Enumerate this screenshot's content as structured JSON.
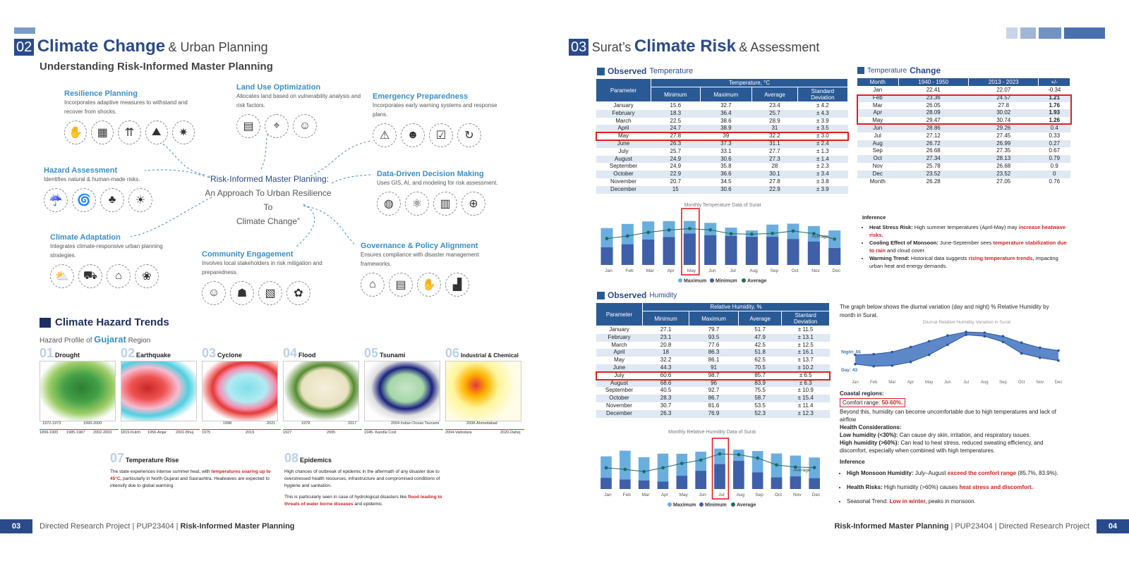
{
  "left": {
    "section_num": "02",
    "title_bold": "Climate Change",
    "title_rest": "& Urban Planning",
    "subtitle": "Understanding Risk-Informed Master Planning",
    "center_text": [
      "“Risk-Informed Master Planning:",
      "An Approach To Urban Resilience To",
      "Climate Change”"
    ],
    "nodes": [
      {
        "title": "Resilience Planning",
        "desc": "Incorporates adaptive measures to withstand and recover from shocks."
      },
      {
        "title": "Land Use Optimization",
        "desc": "Allocates land based on vulnerability analysis and risk factors."
      },
      {
        "title": "Emergency Preparedness",
        "desc": "Incorporates early warning systems and response plans."
      },
      {
        "title": "Hazard Assessment",
        "desc": "Identifies natural & human-made risks."
      },
      {
        "title": "Data-Driven Decision Making",
        "desc": "Uses GIS, AI, and modeling for risk assessment."
      },
      {
        "title": "Climate Adaptation",
        "desc": "Integrates climate-responsive urban planning strategies."
      },
      {
        "title": "Community Engagement",
        "desc": "Involves local stakeholders in risk mitigation and preparedness."
      },
      {
        "title": "Governance & Policy Alignment",
        "desc": "Ensures compliance with disaster management frameworks."
      }
    ],
    "hazard_title": "Climate Hazard Trends",
    "hazard_sub_pre": "Hazard Profile of",
    "hazard_sub_state": "Gujarat",
    "hazard_sub_post": "Region",
    "hazards": [
      {
        "num": "01",
        "name": "Drought",
        "labels_top": [
          "1972-1973",
          "1999-2000"
        ],
        "labels_bot": [
          "1899-1900",
          "1985-1987",
          "2002-2003"
        ]
      },
      {
        "num": "02",
        "name": "Earthquake",
        "labels_top": [],
        "labels_bot": [
          "1819-Kutch",
          "1956-Anjar",
          "2001-Bhuj"
        ]
      },
      {
        "num": "03",
        "name": "Cyclone",
        "labels_top": [
          "1998",
          "2021"
        ],
        "labels_bot": [
          "1975",
          "2019"
        ]
      },
      {
        "num": "04",
        "name": "Flood",
        "labels_top": [
          "1979",
          "2017"
        ],
        "labels_bot": [
          "1927",
          "2005"
        ]
      },
      {
        "num": "05",
        "name": "Tsunami",
        "labels_top": [
          "2004 Indian Ocean Tsunami"
        ],
        "labels_bot": [
          "1945- Kandla Cost"
        ]
      },
      {
        "num": "06",
        "name": "Industrial & Chemical",
        "labels_top": [
          "2008-Ahmedabad"
        ],
        "labels_bot": [
          "2004-Vadodara",
          "2020-Dahej"
        ]
      }
    ],
    "temp_rise": {
      "num": "07",
      "title": "Temperature Rise",
      "text_a": "The state experiences intense summer heat, with",
      "text_red": "temperatures soaring up to 45°C,",
      "text_b": "particularly in North Gujarat and Saurashtra. Heatwaves are expected to intensify due to global warming."
    },
    "epidemics": {
      "num": "08",
      "title": "Epidemics",
      "text_a": "High chances of outbreak of epidemic in the aftermath of any disaster due to overstressed health resources, infrastructure and compromised conditions of hygiene and sanitation.",
      "text_b": "This is particularly seen in case of hydrological disasters like",
      "text_red": "flood leading to threats of water borne diseases",
      "text_c": "and epidemic."
    },
    "footer_num": "03",
    "footer_text": "Directed Research Project | PUP23404 |",
    "footer_bold": "Risk-Informed Master Planning"
  },
  "right": {
    "section_num": "03",
    "title_pre": "Surat’s",
    "title_bold": "Climate Risk",
    "title_rest": "& Assessment",
    "obs_temp_bold": "Observed",
    "obs_temp_rest": "Temperature",
    "temp_headers": {
      "param": "Parameter",
      "group": "Temperature, °C",
      "min": "Minimum",
      "max": "Maximum",
      "avg": "Average",
      "sd": "Standard",
      "sd2": "Deviation"
    },
    "temp_rows": [
      [
        "January",
        "15.6",
        "32.7",
        "23.4",
        "± 4.2"
      ],
      [
        "February",
        "18.3",
        "36.4",
        "25.7",
        "± 4.3"
      ],
      [
        "March",
        "22.5",
        "38.6",
        "28.9",
        "± 3.9"
      ],
      [
        "April",
        "24.7",
        "38.9",
        "31",
        "± 3.5"
      ],
      [
        "May",
        "27.8",
        "39",
        "32.2",
        "± 3.0"
      ],
      [
        "June",
        "26.3",
        "37.3",
        "31.1",
        "± 2.4"
      ],
      [
        "July",
        "25.7",
        "33.1",
        "27.7",
        "± 1.3"
      ],
      [
        "August",
        "24.9",
        "30.6",
        "27.3",
        "± 1.4"
      ],
      [
        "September",
        "24.9",
        "35.8",
        "28",
        "± 2.3"
      ],
      [
        "October",
        "22.9",
        "36.6",
        "30.1",
        "± 3.4"
      ],
      [
        "November",
        "20.7",
        "34.5",
        "27.8",
        "± 3.8"
      ],
      [
        "December",
        "15",
        "30.6",
        "22.9",
        "± 3.9"
      ]
    ],
    "change_bold": "Change",
    "change_pre": "Temperature",
    "change_headers": [
      "Month",
      "1940 - 1950",
      "2013 - 2023",
      "+/-"
    ],
    "change_rows": [
      [
        "Jan",
        "22.41",
        "22.07",
        "-0.34"
      ],
      [
        "Feb",
        "23.36",
        "24.57",
        "1.21"
      ],
      [
        "Mar",
        "26.05",
        "27.8",
        "1.76"
      ],
      [
        "Apr",
        "28.09",
        "30.02",
        "1.93"
      ],
      [
        "May",
        "29.47",
        "30.74",
        "1.26"
      ],
      [
        "Jun",
        "28.86",
        "29.26",
        "0.4"
      ],
      [
        "Jul",
        "27.12",
        "27.45",
        "0.33"
      ],
      [
        "Aug",
        "26.72",
        "26.99",
        "0.27"
      ],
      [
        "Sep",
        "26.68",
        "27.35",
        "0.67"
      ],
      [
        "Oct",
        "27.34",
        "28.13",
        "0.79"
      ],
      [
        "Nov",
        "25.78",
        "26.68",
        "0.9"
      ],
      [
        "Dec",
        "23.52",
        "23.52",
        "0"
      ],
      [
        "Month",
        "26.28",
        "27.05",
        "0.76"
      ]
    ],
    "inference1": {
      "title": "Inference",
      "items": [
        {
          "bold": "Heat Stress Risk:",
          "text": "High summer temperatures (April-May) may",
          "red": "increase heatwave risks."
        },
        {
          "bold": "Cooling Effect of Monsoon:",
          "text": "June-September sees",
          "red": "temperature stabilization due to rain",
          "after": "and cloud cover."
        },
        {
          "bold": "Warming Trend:",
          "text": "Historical data suggests",
          "red": "rising temperature trends,",
          "after": "impacting urban heat and energy demands."
        }
      ]
    },
    "obs_hum_bold": "Observed",
    "obs_hum_rest": "Humidity",
    "hum_headers": {
      "param": "Parameter",
      "group": "Relative Humidity, %",
      "min": "Minimum",
      "max": "Maximum",
      "avg": "Average",
      "sd": "Stantard",
      "sd2": "Deviation"
    },
    "hum_rows": [
      [
        "January",
        "27.1",
        "79.7",
        "51.7",
        "± 11.5"
      ],
      [
        "February",
        "23.1",
        "93.5",
        "47.9",
        "± 13.1"
      ],
      [
        "March",
        "20.8",
        "77.6",
        "42.5",
        "± 12.5"
      ],
      [
        "April",
        "18",
        "86.3",
        "51.8",
        "± 16.1"
      ],
      [
        "May",
        "32.2",
        "86.1",
        "62.5",
        "± 13.7"
      ],
      [
        "June",
        "44.3",
        "91",
        "70.5",
        "± 10.2"
      ],
      [
        "July",
        "60.6",
        "98.7",
        "85.7",
        "± 6.5"
      ],
      [
        "August",
        "68.6",
        "96",
        "83.9",
        "± 6.3"
      ],
      [
        "September",
        "40.5",
        "92.7",
        "75.5",
        "± 10.9"
      ],
      [
        "October",
        "28.3",
        "86.7",
        "58.7",
        "± 15.4"
      ],
      [
        "November",
        "30.7",
        "81.6",
        "53.5",
        "± 11.4"
      ],
      [
        "December",
        "26.3",
        "76.9",
        "52.3",
        "± 12.3"
      ]
    ],
    "diurnal_intro": "The graph below shows the diurnal variation (day and night) % Relative Humidity by month in Surat.",
    "coastal": {
      "title": "Coastal regions:",
      "comfort_label": "Comfort range:",
      "comfort_val": "50-60%.",
      "beyond": "Beyond this, humidity can become uncomfortable due to high temperatures and lack of airflow",
      "hc_title": "Health Considerations:",
      "low_bold": "Low humidity (<30%):",
      "low_text": "Can cause dry skin, irritation, and respiratory issues.",
      "high_bold": "High humidity (>60%):",
      "high_text": "Can lead to heat stress, reduced sweating efficiency, and discomfort, especially when combined with high temperatures."
    },
    "inference2": {
      "title": "Inference",
      "items": [
        {
          "bold": "High Monsoon Humidity:",
          "text": "July–August",
          "red": "exceed the comfort range",
          "after": "(85.7%, 83.9%)."
        },
        {
          "bold": "Health Risks:",
          "text": "High humidity (>60%) causes",
          "red": "heat stress and discomfort.",
          "after": ""
        },
        {
          "bold": "",
          "text": "Seasonal Trend:",
          "red": "Low in winter,",
          "after": "peaks in monsoon."
        }
      ]
    },
    "footer_num": "04",
    "footer_bold": "Risk-Informed Master Planning",
    "footer_text": "| PUP23404 | Directed Research Project"
  },
  "chart_data": [
    {
      "type": "bar",
      "title": "Monthly Temperature Data of Surat",
      "categories": [
        "Jan",
        "Feb",
        "Mar",
        "Apr",
        "May",
        "Jun",
        "Jul",
        "Aug",
        "Sep",
        "Oct",
        "Nov",
        "Dec"
      ],
      "series": [
        {
          "name": "Maximum",
          "values": [
            32.7,
            36.4,
            38.6,
            38.9,
            39,
            37.3,
            33.1,
            30.6,
            35.8,
            36.6,
            34.5,
            30.6
          ]
        },
        {
          "name": "Minimum",
          "values": [
            15.6,
            18.3,
            22.5,
            24.7,
            27.8,
            26.3,
            25.7,
            24.9,
            24.9,
            22.9,
            20.7,
            15
          ]
        },
        {
          "name": "Average",
          "values": [
            23.4,
            25.7,
            28.9,
            31,
            32.2,
            31.1,
            27.7,
            27.3,
            28,
            30.1,
            27.8,
            22.9
          ]
        }
      ],
      "annotation": "Average",
      "colors": [
        "#6aaee0",
        "#3f5fa8",
        "#1f6b5a"
      ]
    },
    {
      "type": "line",
      "title": "Diurnal Relative Humidity Variation in Surat",
      "categories": [
        "Jan",
        "Feb",
        "Mar",
        "Apr",
        "May",
        "Jun",
        "Jul",
        "Aug",
        "Sep",
        "Oct",
        "Nov",
        "Dec"
      ],
      "series": [
        {
          "name": "Night",
          "values": [
            56,
            57,
            60,
            67,
            75,
            83,
            88,
            87,
            82,
            73,
            66,
            62
          ]
        },
        {
          "name": "Day",
          "values": [
            43,
            40,
            41,
            46,
            56,
            70,
            84,
            82,
            74,
            58,
            52,
            48
          ]
        }
      ],
      "labels": {
        "night": "Night: 56",
        "day": "Day: 43"
      }
    },
    {
      "type": "bar",
      "title": "Monthly Relative Humidity Data of Surat",
      "categories": [
        "Jan",
        "Feb",
        "Mar",
        "Apr",
        "May",
        "Jun",
        "Jul",
        "Aug",
        "Sep",
        "Oct",
        "Nov",
        "Dec"
      ],
      "series": [
        {
          "name": "Maximum",
          "values": [
            79.7,
            93.5,
            77.6,
            86.3,
            86.1,
            91,
            98.7,
            96,
            92.7,
            86.7,
            81.6,
            76.9
          ]
        },
        {
          "name": "Minimum",
          "values": [
            27.1,
            23.1,
            20.8,
            18,
            32.2,
            44.3,
            60.6,
            68.6,
            40.5,
            28.3,
            30.7,
            26.3
          ]
        },
        {
          "name": "Average",
          "values": [
            51.7,
            47.9,
            42.5,
            51.8,
            62.5,
            70.5,
            85.7,
            83.9,
            75.5,
            58.7,
            53.5,
            52.3
          ]
        }
      ],
      "annotation": "Average",
      "colors": [
        "#6aaee0",
        "#3f5fa8",
        "#1f6b5a"
      ]
    }
  ]
}
